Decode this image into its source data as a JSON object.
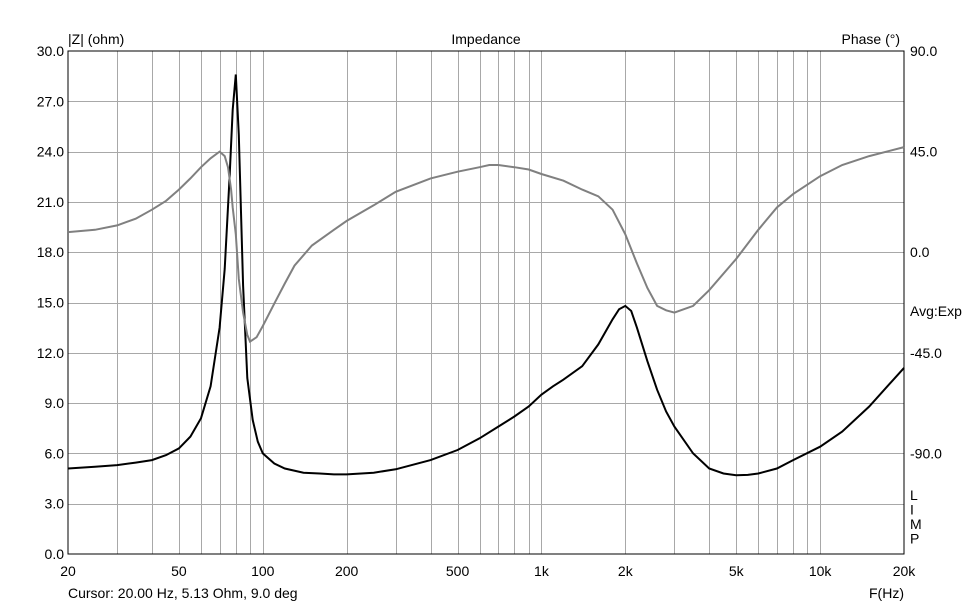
{
  "chart_data": {
    "type": "line",
    "title": "Impedance",
    "y_left_label": "|Z| (ohm)",
    "y_right_label": "Phase (°)",
    "xlabel": "F(Hz)",
    "x_scale": "log",
    "xlim": [
      20,
      20000
    ],
    "ylim_left": [
      0,
      30
    ],
    "ylim_right": [
      -135,
      90
    ],
    "grid": true,
    "x_ticks": [
      {
        "value": 20,
        "label": "20"
      },
      {
        "value": 50,
        "label": "50"
      },
      {
        "value": 100,
        "label": "100"
      },
      {
        "value": 200,
        "label": "200"
      },
      {
        "value": 500,
        "label": "500"
      },
      {
        "value": 1000,
        "label": "1k"
      },
      {
        "value": 2000,
        "label": "2k"
      },
      {
        "value": 5000,
        "label": "5k"
      },
      {
        "value": 10000,
        "label": "10k"
      },
      {
        "value": 20000,
        "label": "20k"
      }
    ],
    "y_left_ticks": [
      "0.0",
      "3.0",
      "6.0",
      "9.0",
      "12.0",
      "15.0",
      "18.0",
      "21.0",
      "24.0",
      "27.0",
      "30.0"
    ],
    "y_right_ticks": [
      {
        "value": 90,
        "label": "90.0"
      },
      {
        "value": 45,
        "label": "45.0"
      },
      {
        "value": 0,
        "label": "0.0"
      },
      {
        "value": -45,
        "label": "-45.0"
      },
      {
        "value": -90,
        "label": "-90.0"
      }
    ],
    "right_annotation": "Avg:Exp",
    "side_text": "LIMP",
    "cursor_text": "Cursor: 20.00 Hz, 5.13 Ohm, 9.0 deg",
    "series": [
      {
        "axis": "left",
        "color": "#000000",
        "x": [
          20,
          25,
          30,
          35,
          40,
          45,
          50,
          55,
          60,
          65,
          70,
          73,
          76,
          78,
          80,
          82,
          85,
          88,
          92,
          96,
          100,
          110,
          120,
          140,
          160,
          180,
          200,
          250,
          300,
          400,
          500,
          600,
          700,
          800,
          900,
          1000,
          1100,
          1200,
          1400,
          1600,
          1800,
          1900,
          2000,
          2100,
          2200,
          2400,
          2600,
          2800,
          3000,
          3500,
          4000,
          4500,
          5000,
          5500,
          6000,
          7000,
          8000,
          10000,
          12000,
          15000,
          20000
        ],
        "y": [
          5.1,
          5.2,
          5.3,
          5.45,
          5.6,
          5.9,
          6.3,
          7.0,
          8.1,
          10.0,
          13.5,
          17.0,
          22.5,
          26.5,
          28.6,
          25.0,
          16.0,
          10.5,
          8.0,
          6.7,
          6.0,
          5.4,
          5.1,
          4.85,
          4.8,
          4.75,
          4.75,
          4.85,
          5.05,
          5.6,
          6.2,
          6.9,
          7.6,
          8.2,
          8.8,
          9.5,
          10.0,
          10.4,
          11.2,
          12.5,
          14.0,
          14.6,
          14.8,
          14.5,
          13.5,
          11.5,
          9.8,
          8.5,
          7.6,
          6.0,
          5.1,
          4.8,
          4.7,
          4.72,
          4.8,
          5.1,
          5.6,
          6.4,
          7.3,
          8.8,
          11.1
        ]
      },
      {
        "axis": "right",
        "color": "#808080",
        "x": [
          20,
          25,
          30,
          35,
          40,
          45,
          50,
          55,
          60,
          65,
          70,
          73,
          75,
          77,
          78,
          80,
          82,
          85,
          88,
          90,
          95,
          100,
          110,
          120,
          130,
          150,
          180,
          200,
          250,
          300,
          400,
          500,
          600,
          650,
          700,
          800,
          900,
          1000,
          1200,
          1400,
          1600,
          1800,
          2000,
          2200,
          2400,
          2600,
          2800,
          3000,
          3500,
          4000,
          5000,
          6000,
          7000,
          8000,
          10000,
          12000,
          15000,
          20000
        ],
        "y": [
          9,
          10,
          12,
          15,
          19,
          23,
          28,
          33,
          38,
          42,
          45,
          43,
          38,
          28,
          20,
          8,
          -12,
          -27,
          -37,
          -40,
          -38,
          -33,
          -23,
          -14,
          -6,
          3,
          10,
          14,
          21,
          27,
          33,
          36,
          38,
          39,
          39,
          38,
          37,
          35,
          32,
          28,
          25,
          19,
          8,
          -5,
          -16,
          -24,
          -26,
          -27,
          -24,
          -17,
          -3,
          10,
          20,
          26,
          34,
          39,
          43,
          47
        ]
      }
    ]
  }
}
